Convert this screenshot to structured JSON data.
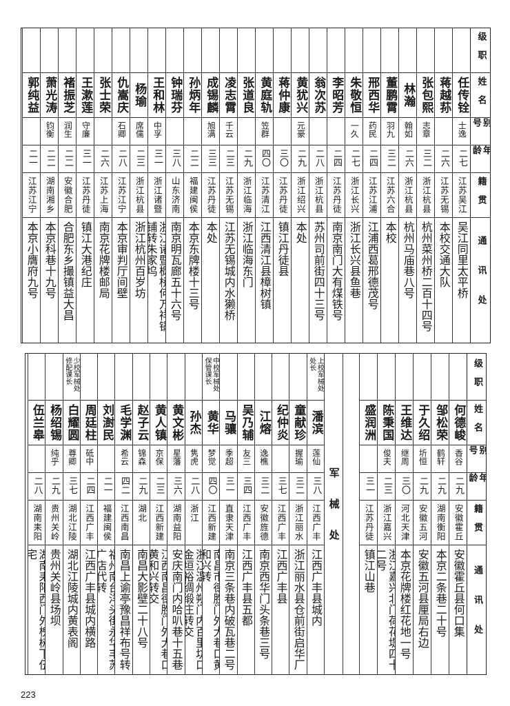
{
  "headers": {
    "rank": "级职",
    "name": "姓名",
    "alias": "别号",
    "age": "年龄",
    "origin": "籍贯",
    "address": "通讯处"
  },
  "upper": [
    {
      "rank": "",
      "name": "任传铨",
      "alias": "士逸",
      "age": "二七",
      "origin": "江苏吴江",
      "address": "吴江同里太平桥"
    },
    {
      "rank": "",
      "name": "蒋越荪",
      "alias": "",
      "age": "二六",
      "origin": "江苏无锡",
      "address": "本校交通大队"
    },
    {
      "rank": "",
      "name": "张包熙",
      "alias": "志章",
      "age": "三二",
      "origin": "浙江杭县",
      "address": "杭州菜州桥二百十四号"
    },
    {
      "rank": "",
      "name": "林瀚",
      "alias": "翰如",
      "age": "二六",
      "origin": "浙江杭县",
      "address": "杭州马庙巷八号"
    },
    {
      "rank": "",
      "name": "董鹏霄",
      "alias": "羽九",
      "age": "三二",
      "origin": "江苏六合",
      "address": "本校"
    },
    {
      "rank": "",
      "name": "邢西华",
      "alias": "药民",
      "age": "二四",
      "origin": "江苏江浦",
      "address": "江浦西葛邢德茂号"
    },
    {
      "rank": "",
      "name": "朱敬恒",
      "alias": "一久",
      "age": "二七",
      "origin": "浙江长兴",
      "address": "浙江长兴县鱼巷"
    },
    {
      "rank": "",
      "name": "李昭芳",
      "alias": "",
      "age": "二四",
      "origin": "江苏丹徒",
      "address": "南京南门大有煤铁号"
    },
    {
      "rank": "",
      "name": "翁次苏",
      "alias": "",
      "age": "二八",
      "origin": "浙江杭县",
      "address": "苏州司前街四十三号"
    },
    {
      "rank": "",
      "name": "黄犹兴",
      "alias": "元豪",
      "age": "二九",
      "origin": "浙江绍兴",
      "address": "本处"
    },
    {
      "rank": "",
      "name": "蒋仲康",
      "alias": "",
      "age": "三〇",
      "origin": "江苏丹徒",
      "address": "镇江丹徒县"
    },
    {
      "rank": "",
      "name": "黄庭轨",
      "alias": "笠群",
      "age": "四〇",
      "origin": "江苏清江",
      "address": "江西清江县樟树镇"
    },
    {
      "rank": "",
      "name": "张道良",
      "alias": "",
      "age": "二九",
      "origin": "浙江临海",
      "address": "浙江临海东门"
    },
    {
      "rank": "",
      "name": "凌志霄",
      "alias": "千云",
      "age": "二三",
      "origin": "江苏无锡",
      "address": "江苏无锡城内水獭桥"
    },
    {
      "rank": "",
      "name": "成锡麟",
      "alias": "旭满",
      "age": "三三",
      "origin": "江苏丹徒",
      "address": "本处"
    },
    {
      "rank": "",
      "name": "孙炳年",
      "alias": "",
      "age": "二二",
      "origin": "福建闽侯",
      "address": "本京东牌楼十三号"
    },
    {
      "rank": "",
      "name": "钟瑞芬",
      "alias": "",
      "age": "三八",
      "origin": "山东济南",
      "address": "南京明瓦廊五十六号"
    },
    {
      "rank": "",
      "name": "王和林",
      "alias": "中孚",
      "age": "三一",
      "origin": "浙江诸暨",
      "address": "浙江诸暨枫桥何万祥锅铺转朱家坞"
    },
    {
      "rank": "",
      "name": "杨瑜",
      "alias": "席儒",
      "age": "二三",
      "origin": "浙江杭县",
      "address": "浙江杭州百岁坊"
    },
    {
      "rank": "",
      "name": "仇嵩庆",
      "alias": "石卿",
      "age": "二八",
      "origin": "江苏江宁",
      "address": "本京审判厅间壁"
    },
    {
      "rank": "",
      "name": "张士荣",
      "alias": "",
      "age": "二六",
      "origin": "江苏上海",
      "address": "南京花牌楼邮局"
    },
    {
      "rank": "",
      "name": "王漱莲",
      "alias": "守廉",
      "age": "三一",
      "origin": "江苏丹徒",
      "address": "镇江大港纪庄"
    },
    {
      "rank": "",
      "name": "褚振芝",
      "alias": "润生",
      "age": "二二",
      "origin": "安徽合肥",
      "address": "合肥东乡撮镇益大昌"
    },
    {
      "rank": "",
      "name": "萧光涛",
      "alias": "钧衡",
      "age": "二二",
      "origin": "湖南湘乡",
      "address": "本京科巷十九号"
    },
    {
      "rank": "",
      "name": "郭纯益",
      "alias": "",
      "age": "二一",
      "origin": "江苏江宁",
      "address": "本京小膺府九号"
    }
  ],
  "lower_a": [
    {
      "rank": "",
      "name": "何德峻",
      "alias": "香谷",
      "age": "二九",
      "origin": "安徽霍丘",
      "address": "安徽霍丘县何口集"
    },
    {
      "rank": "",
      "name": "邹松荣",
      "alias": "鹤轩",
      "age": "二九",
      "origin": "湖南衡阳",
      "address": "本京二条巷二十号"
    },
    {
      "rank": "",
      "name": "于久绍",
      "alias": "圻恒",
      "age": "二九",
      "origin": "安徽五河",
      "address": "安徽五河县厘局右边"
    },
    {
      "rank": "",
      "name": "王维达",
      "alias": "继周",
      "age": "三〇",
      "origin": "河北天津",
      "address": "本京花牌楼红花地一号"
    },
    {
      "rank": "",
      "name": "陈秉国",
      "alias": "俊夫",
      "age": "二三",
      "origin": "浙江嘉兴",
      "address": "浙江嘉兴北门荷花堤四十二号"
    },
    {
      "rank": "",
      "name": "盛润洲",
      "alias": "",
      "age": "三一",
      "origin": "江苏丹徒",
      "address": "镇江山巷"
    }
  ],
  "section_label": "军械处",
  "lower_b": [
    {
      "rank": "上校军械处处长",
      "name": "潘滨",
      "alias": "莲仙",
      "age": "三八",
      "origin": "江西广丰",
      "address": "江西广丰县城内"
    },
    {
      "rank": "",
      "name": "童献珍",
      "alias": "握瑜",
      "age": "三二",
      "origin": "浙江丽水",
      "address": "浙江丽水县仓前街启华厂"
    },
    {
      "rank": "",
      "name": "纪仲炎",
      "alias": "",
      "age": "三七",
      "origin": "江西广丰",
      "address": "江西广丰县"
    },
    {
      "rank": "",
      "name": "江熔",
      "alias": "逸樵",
      "age": "三二",
      "origin": "安徽旌德",
      "address": "南京西华门头条巷三号"
    },
    {
      "rank": "",
      "name": "吴乃辅",
      "alias": "友三",
      "age": "三四",
      "origin": "江西广丰",
      "address": "江西广丰县五都"
    },
    {
      "rank": "",
      "name": "马骧",
      "alias": "季超",
      "age": "三一",
      "origin": "直隶天津",
      "address": "南京三条巷内破瓦巷二号"
    },
    {
      "rank": "中校军械处保管课长",
      "name": "黄华",
      "alias": "梦觉",
      "age": "四〇",
      "origin": "江西新建",
      "address": "南昌市德胜门外大巷口黄和兴转"
    },
    {
      "rank": "",
      "name": "孙杰",
      "alias": "隽虎",
      "age": "二八",
      "origin": "浙江",
      "address": "浙江温州朔门内百里坊口金垣裕绸缎庄转交"
    },
    {
      "rank": "",
      "name": "黄文彬",
      "alias": "星藩",
      "age": "三六",
      "origin": "湖南益阳",
      "address": "安庆南门内哈叭巷十五巷"
    },
    {
      "rank": "",
      "name": "黄人镇",
      "alias": "京保",
      "age": "二三",
      "origin": "江西新建",
      "address": "江西南昌德胜门外大巷口黄和兴转交"
    },
    {
      "rank": "",
      "name": "赵子云",
      "alias": "锦森",
      "age": "二九",
      "origin": "湖北",
      "address": "南昌大影壁二十八号"
    },
    {
      "rank": "",
      "name": "毛学渊",
      "alias": "希云",
      "age": "四二",
      "origin": "江西南昌",
      "address": "南昌上谕亭豫昌祥布号转"
    },
    {
      "rank": "",
      "name": "刘澍民",
      "alias": "",
      "age": "二一",
      "origin": "福建闽侯",
      "address": "福州南台洋头街永华丰苏广店代转"
    },
    {
      "rank": "",
      "name": "周廷柱",
      "alias": "砥中",
      "age": "二四",
      "origin": "江西广丰",
      "address": "江西广丰县城内横路"
    },
    {
      "rank": "少校军械处修配课长",
      "name": "白耀圆",
      "alias": "尊卿",
      "age": "三七",
      "origin": "湖北江陵",
      "address": "湖北江陵城内黄表阁"
    },
    {
      "rank": "",
      "name": "杨绍锡",
      "alias": "纯乎",
      "age": "二九",
      "origin": "贵州关岭",
      "address": "贵州关岭县场坝"
    },
    {
      "rank": "",
      "name": "伍兰皋",
      "alias": "",
      "age": "二八",
      "origin": "湖南耒阳",
      "address": "湖南耒阳西门外槐树下伍宅"
    }
  ],
  "page_number": "223"
}
